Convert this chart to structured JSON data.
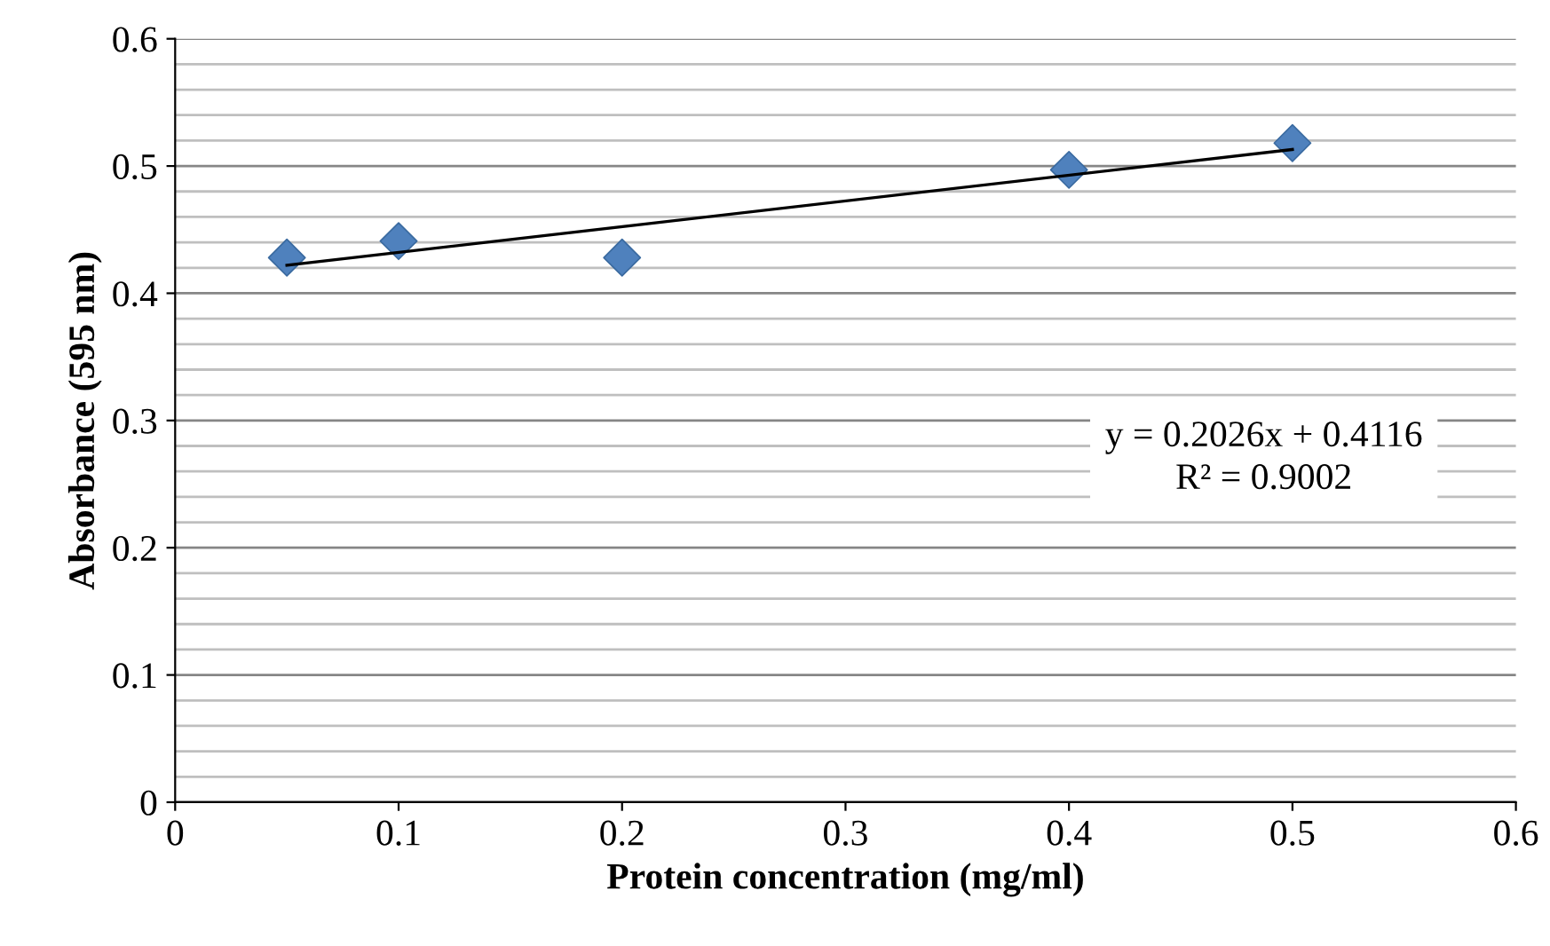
{
  "chart_data": {
    "type": "scatter",
    "xlabel": "Protein concentration (mg/ml)",
    "ylabel": "Absorbance (595 nm)",
    "xlim": [
      0,
      0.6
    ],
    "xticks": [
      0,
      0.1,
      0.2,
      0.3,
      0.4,
      0.5,
      0.6
    ],
    "ylim": [
      0,
      0.6
    ],
    "yticks": [
      0,
      0.1,
      0.2,
      0.3,
      0.4,
      0.5,
      0.6
    ],
    "grid": "y",
    "marker": "diamond",
    "legend": false,
    "series": [
      {
        "color": "#4f81bd",
        "x": [
          0.05,
          0.1,
          0.2,
          0.4,
          0.5
        ],
        "values": [
          0.428,
          0.441,
          0.428,
          0.497,
          0.518
        ]
      },
      {
        "type": "line",
        "color": "#000000",
        "marker": "none",
        "line_style": "solid",
        "x": [
          0.05,
          0.5
        ],
        "values": [
          0.422,
          0.513
        ]
      }
    ],
    "annotations": [
      "y = 0.2026x + 0.4116\nR² = 0.9002"
    ]
  }
}
